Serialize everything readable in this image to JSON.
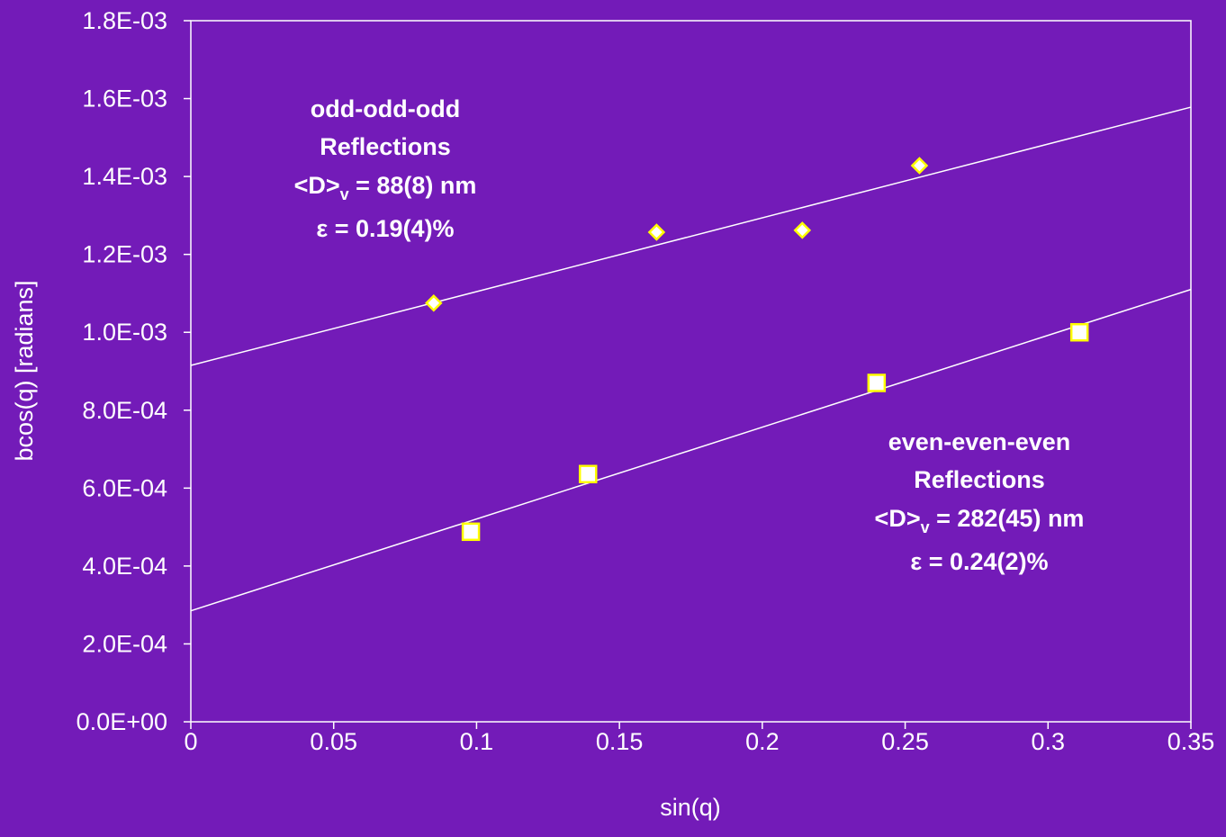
{
  "chart_data": {
    "type": "scatter",
    "xlabel": "sin(q)",
    "ylabel": "bcos(q) [radians]",
    "xlim": [
      0,
      0.35
    ],
    "ylim": [
      0,
      0.0018
    ],
    "x_ticks": [
      "0",
      "0.05",
      "0.1",
      "0.15",
      "0.2",
      "0.25",
      "0.3",
      "0.35"
    ],
    "x_tick_values": [
      0,
      0.05,
      0.1,
      0.15,
      0.2,
      0.25,
      0.3,
      0.35
    ],
    "y_ticks": [
      "0.0E+00",
      "2.0E-04",
      "4.0E-04",
      "6.0E-04",
      "8.0E-04",
      "1.0E-03",
      "1.2E-03",
      "1.4E-03",
      "1.6E-03",
      "1.8E-03"
    ],
    "y_tick_values": [
      0,
      0.0002,
      0.0004,
      0.0006,
      0.0008,
      0.001,
      0.0012,
      0.0014,
      0.0016,
      0.0018
    ],
    "grid": false,
    "series": [
      {
        "marker": "diamond",
        "color": "#ffff00",
        "points": [
          {
            "x": 0.085,
            "y": 0.001075
          },
          {
            "x": 0.163,
            "y": 0.001257
          },
          {
            "x": 0.214,
            "y": 0.001262
          },
          {
            "x": 0.255,
            "y": 0.001428
          }
        ],
        "fit": {
          "x0": 0,
          "y0": 0.000915,
          "x1": 0.35,
          "y1": 0.001578
        }
      },
      {
        "marker": "square",
        "color": "#ffff00",
        "points": [
          {
            "x": 0.098,
            "y": 0.000488
          },
          {
            "x": 0.139,
            "y": 0.000636
          },
          {
            "x": 0.24,
            "y": 0.00087
          },
          {
            "x": 0.311,
            "y": 0.001
          }
        ],
        "fit": {
          "x0": 0,
          "y0": 0.000285,
          "x1": 0.35,
          "y1": 0.00111
        }
      }
    ],
    "annotations": [
      {
        "lines": [
          {
            "text": "odd-odd-odd"
          },
          {
            "text": "Reflections"
          },
          {
            "text": "<D>",
            "sub": "v",
            "after": " = 88(8) nm"
          },
          {
            "text": "ε = 0.19(4)%"
          }
        ]
      },
      {
        "lines": [
          {
            "text": "even-even-even"
          },
          {
            "text": "Reflections"
          },
          {
            "text": "<D>",
            "sub": "v",
            "after": " = 282(45) nm"
          },
          {
            "text": "ε = 0.24(2)%"
          }
        ]
      }
    ],
    "colors": {
      "background": "#731bb8",
      "axis": "#ffffff",
      "fit_line": "#ffffff",
      "marker_fill": "#ffffff",
      "marker_stroke": "#ffff00"
    }
  }
}
